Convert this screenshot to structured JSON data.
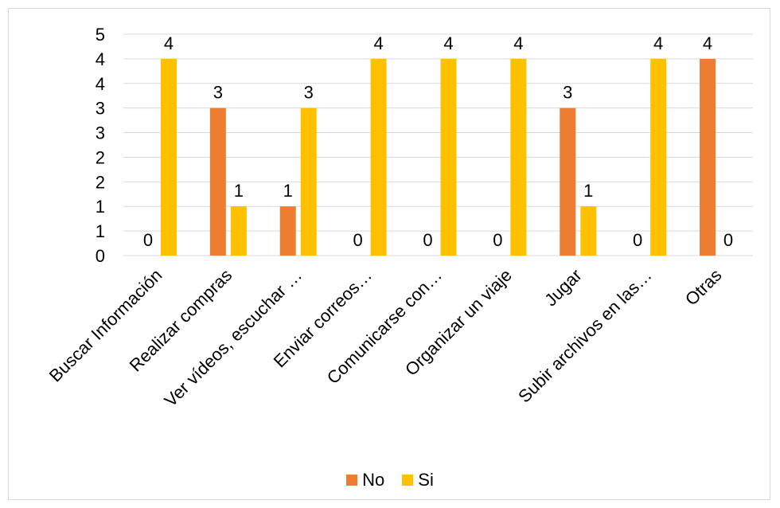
{
  "chart_data": {
    "type": "bar",
    "categories": [
      "Buscar Información",
      "Realizar compras",
      "Ver vídeos, escuchar …",
      "Enviar correos…",
      "Comunicarse con…",
      "Organizar un viaje",
      "Jugar",
      "Subir archivos en las…",
      "Otras"
    ],
    "series": [
      {
        "name": "No",
        "color": "#ED7D31",
        "values": [
          0,
          3,
          1,
          0,
          0,
          0,
          3,
          0,
          4
        ],
        "labels": [
          "0",
          "3",
          "1",
          "0",
          "0",
          "0",
          "3",
          "0",
          "4"
        ]
      },
      {
        "name": "Si",
        "color": "#FFC000",
        "values": [
          4,
          1,
          3,
          4,
          4,
          4,
          1,
          4,
          0
        ],
        "labels": [
          "4",
          "1",
          "3",
          "4",
          "4",
          "4",
          "1",
          "4",
          "0"
        ]
      }
    ],
    "ylim": [
      0,
      4.5
    ],
    "y_tick_values": [
      0,
      0.5,
      1,
      1.5,
      2,
      2.5,
      3,
      3.5,
      4,
      4.5
    ],
    "y_tick_labels": [
      "0",
      "1",
      "1",
      "2",
      "2",
      "3",
      "3",
      "4",
      "4",
      "5"
    ],
    "grid": true,
    "legend_position": "bottom"
  }
}
